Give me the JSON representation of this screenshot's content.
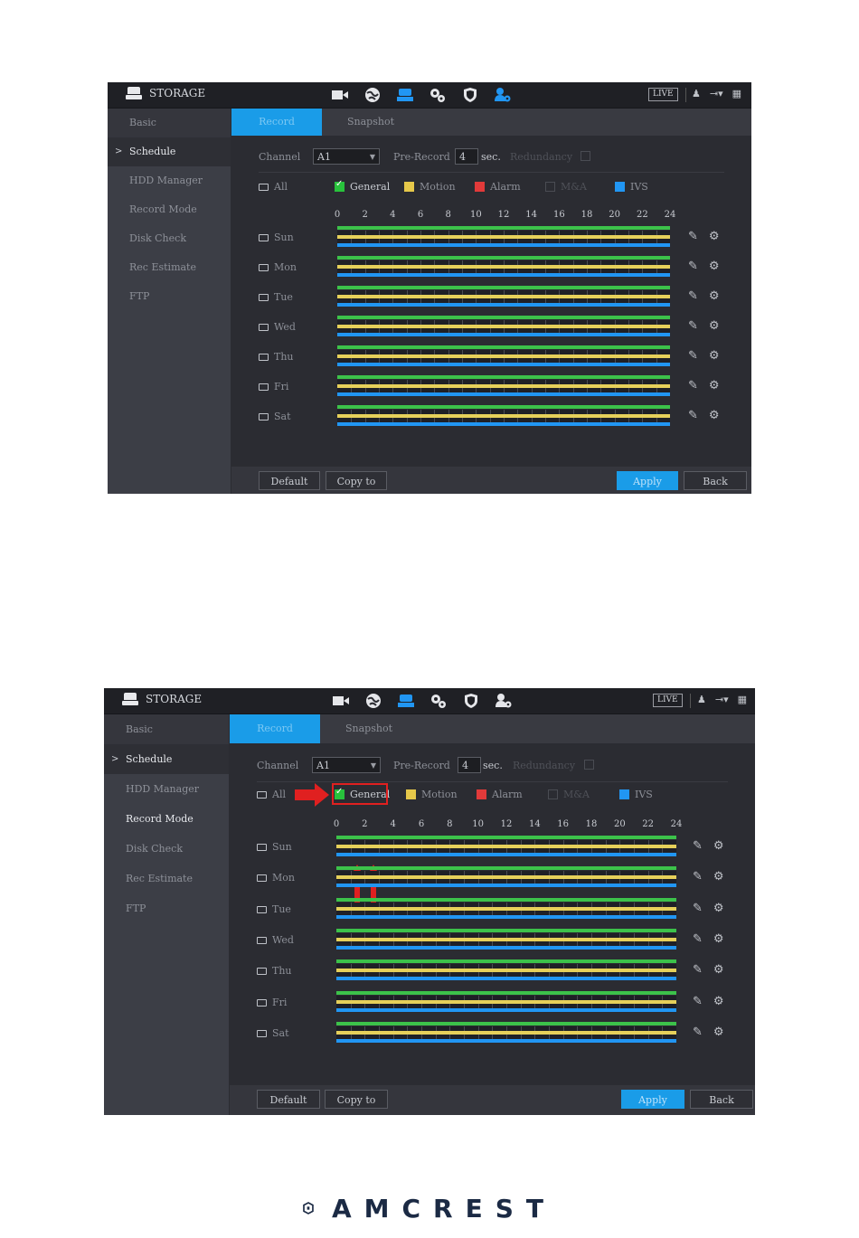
{
  "app": {
    "title": "STORAGE",
    "live_label": "LIVE"
  },
  "sidebar": {
    "items": [
      {
        "label": "Basic"
      },
      {
        "label": "Schedule"
      },
      {
        "label": "HDD Manager"
      },
      {
        "label": "Record Mode"
      },
      {
        "label": "Disk Check"
      },
      {
        "label": "Rec Estimate"
      },
      {
        "label": "FTP"
      }
    ],
    "chevron": ">"
  },
  "tabs": [
    {
      "label": "Record"
    },
    {
      "label": "Snapshot"
    }
  ],
  "controls": {
    "channel_label": "Channel",
    "channel_value": "A1",
    "prerecord_label": "Pre-Record",
    "prerecord_value": "4",
    "prerecord_unit": "sec.",
    "redundancy_label": "Redundancy",
    "all_label": "All"
  },
  "legend": [
    {
      "label": "General",
      "color": "#28c23c",
      "checked": true
    },
    {
      "label": "Motion",
      "color": "#e6c84a"
    },
    {
      "label": "Alarm",
      "color": "#e23a3a"
    },
    {
      "label": "M&A",
      "color": "none"
    },
    {
      "label": "IVS",
      "color": "#2196f3"
    }
  ],
  "timeline": {
    "ticks": [
      "0",
      "2",
      "4",
      "6",
      "8",
      "10",
      "12",
      "14",
      "16",
      "18",
      "20",
      "22",
      "24"
    ],
    "days": [
      "Sun",
      "Mon",
      "Tue",
      "Wed",
      "Thu",
      "Fri",
      "Sat"
    ]
  },
  "buttons": {
    "default": "Default",
    "copy_to": "Copy to",
    "apply": "Apply",
    "back": "Back"
  },
  "footer": {
    "brand": "AMCREST"
  },
  "icons": [
    "hdd-icon",
    "camera-icon",
    "network-icon",
    "storage-icon",
    "settings-icon",
    "security-icon",
    "account-icon",
    "user-icon",
    "logout-icon",
    "grid-icon",
    "pencil-icon",
    "gear-icon"
  ]
}
